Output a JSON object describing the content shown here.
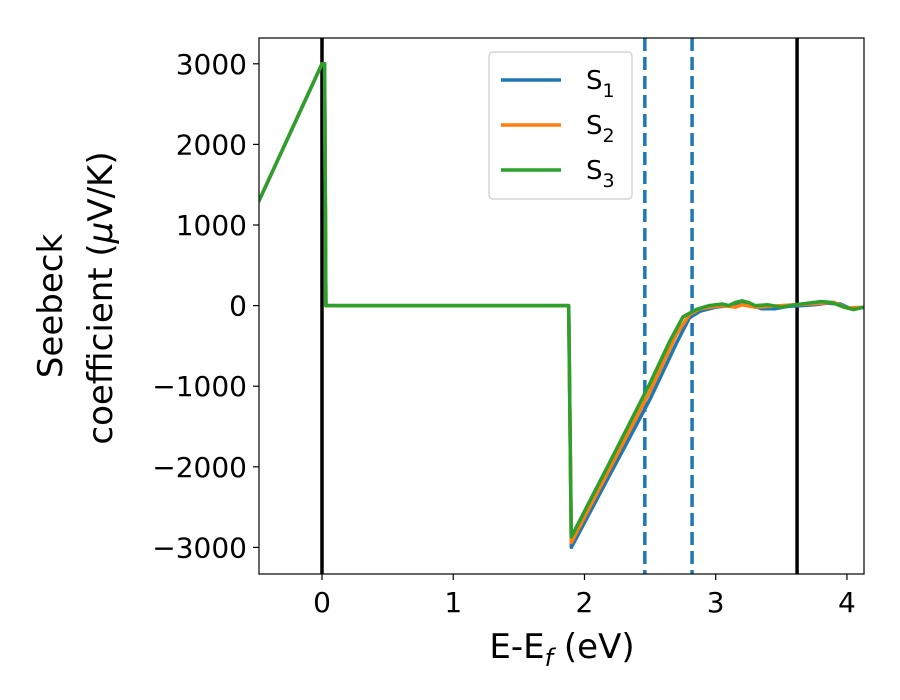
{
  "chart_data": {
    "type": "line",
    "title": "",
    "xlabel": "E-E",
    "xlabel_sub": "f",
    "xlabel_units": " (eV)",
    "ylabel_line1": "Seebeck",
    "ylabel_line2": "coefficient  (",
    "ylabel_mu": "μ",
    "ylabel_units": "V/K)",
    "xlim": [
      -0.48,
      4.13
    ],
    "ylim": [
      -3330,
      3320
    ],
    "xticks": [
      0,
      1,
      2,
      3,
      4
    ],
    "xtick_labels": [
      "0",
      "1",
      "2",
      "3",
      "4"
    ],
    "yticks": [
      3000,
      2000,
      1000,
      0,
      -1000,
      -2000,
      -3000
    ],
    "ytick_labels": [
      "3000",
      "2000",
      "1000",
      "0",
      "−1000",
      "−2000",
      "−3000"
    ],
    "grid": false,
    "legend_position": "top-center",
    "series": [
      {
        "name": "S",
        "subscript": "1",
        "color": "#1f77b4",
        "points": [
          [
            -0.48,
            1300
          ],
          [
            0.0,
            3000
          ],
          [
            0.02,
            3000
          ],
          [
            0.03,
            0
          ],
          [
            1.88,
            0
          ],
          [
            1.9,
            -3000
          ],
          [
            2.2,
            -2080
          ],
          [
            2.5,
            -1160
          ],
          [
            2.7,
            -470
          ],
          [
            2.8,
            -150
          ],
          [
            2.88,
            -70
          ],
          [
            3.0,
            -20
          ],
          [
            3.1,
            0
          ],
          [
            3.2,
            20
          ],
          [
            3.3,
            -10
          ],
          [
            3.35,
            -40
          ],
          [
            3.45,
            -40
          ],
          [
            3.55,
            -10
          ],
          [
            3.65,
            0
          ],
          [
            3.75,
            10
          ],
          [
            3.85,
            30
          ],
          [
            3.95,
            20
          ],
          [
            4.03,
            -40
          ],
          [
            4.13,
            -20
          ]
        ]
      },
      {
        "name": "S",
        "subscript": "2",
        "color": "#ff7f0e",
        "points": [
          [
            -0.48,
            1300
          ],
          [
            0.0,
            3000
          ],
          [
            0.02,
            3000
          ],
          [
            0.03,
            0
          ],
          [
            1.88,
            0
          ],
          [
            1.9,
            -2940
          ],
          [
            2.2,
            -2000
          ],
          [
            2.5,
            -1060
          ],
          [
            2.7,
            -360
          ],
          [
            2.8,
            -110
          ],
          [
            2.88,
            -40
          ],
          [
            3.0,
            -10
          ],
          [
            3.05,
            0
          ],
          [
            3.15,
            -20
          ],
          [
            3.2,
            10
          ],
          [
            3.3,
            -20
          ],
          [
            3.4,
            -10
          ],
          [
            3.5,
            0
          ],
          [
            3.6,
            10
          ],
          [
            3.7,
            20
          ],
          [
            3.8,
            30
          ],
          [
            3.9,
            40
          ],
          [
            4.0,
            -30
          ],
          [
            4.13,
            -20
          ]
        ]
      },
      {
        "name": "S",
        "subscript": "3",
        "color": "#2ca02c",
        "points": [
          [
            -0.48,
            1300
          ],
          [
            0.0,
            3000
          ],
          [
            0.02,
            3000
          ],
          [
            0.03,
            0
          ],
          [
            1.88,
            0
          ],
          [
            1.9,
            -2870
          ],
          [
            2.2,
            -1920
          ],
          [
            2.5,
            -960
          ],
          [
            2.65,
            -440
          ],
          [
            2.75,
            -140
          ],
          [
            2.85,
            -50
          ],
          [
            2.95,
            0
          ],
          [
            3.05,
            20
          ],
          [
            3.1,
            0
          ],
          [
            3.15,
            40
          ],
          [
            3.2,
            60
          ],
          [
            3.25,
            40
          ],
          [
            3.3,
            0
          ],
          [
            3.4,
            10
          ],
          [
            3.5,
            -20
          ],
          [
            3.6,
            10
          ],
          [
            3.7,
            30
          ],
          [
            3.8,
            50
          ],
          [
            3.88,
            40
          ],
          [
            3.98,
            -20
          ],
          [
            4.05,
            -50
          ],
          [
            4.13,
            -20
          ]
        ]
      }
    ],
    "vlines": [
      {
        "x": 0.0,
        "color": "#000000",
        "style": "solid"
      },
      {
        "x": 3.62,
        "color": "#000000",
        "style": "solid"
      },
      {
        "x": 2.46,
        "color": "#1f77b4",
        "style": "dashed"
      },
      {
        "x": 2.82,
        "color": "#1f77b4",
        "style": "dashed"
      }
    ]
  }
}
